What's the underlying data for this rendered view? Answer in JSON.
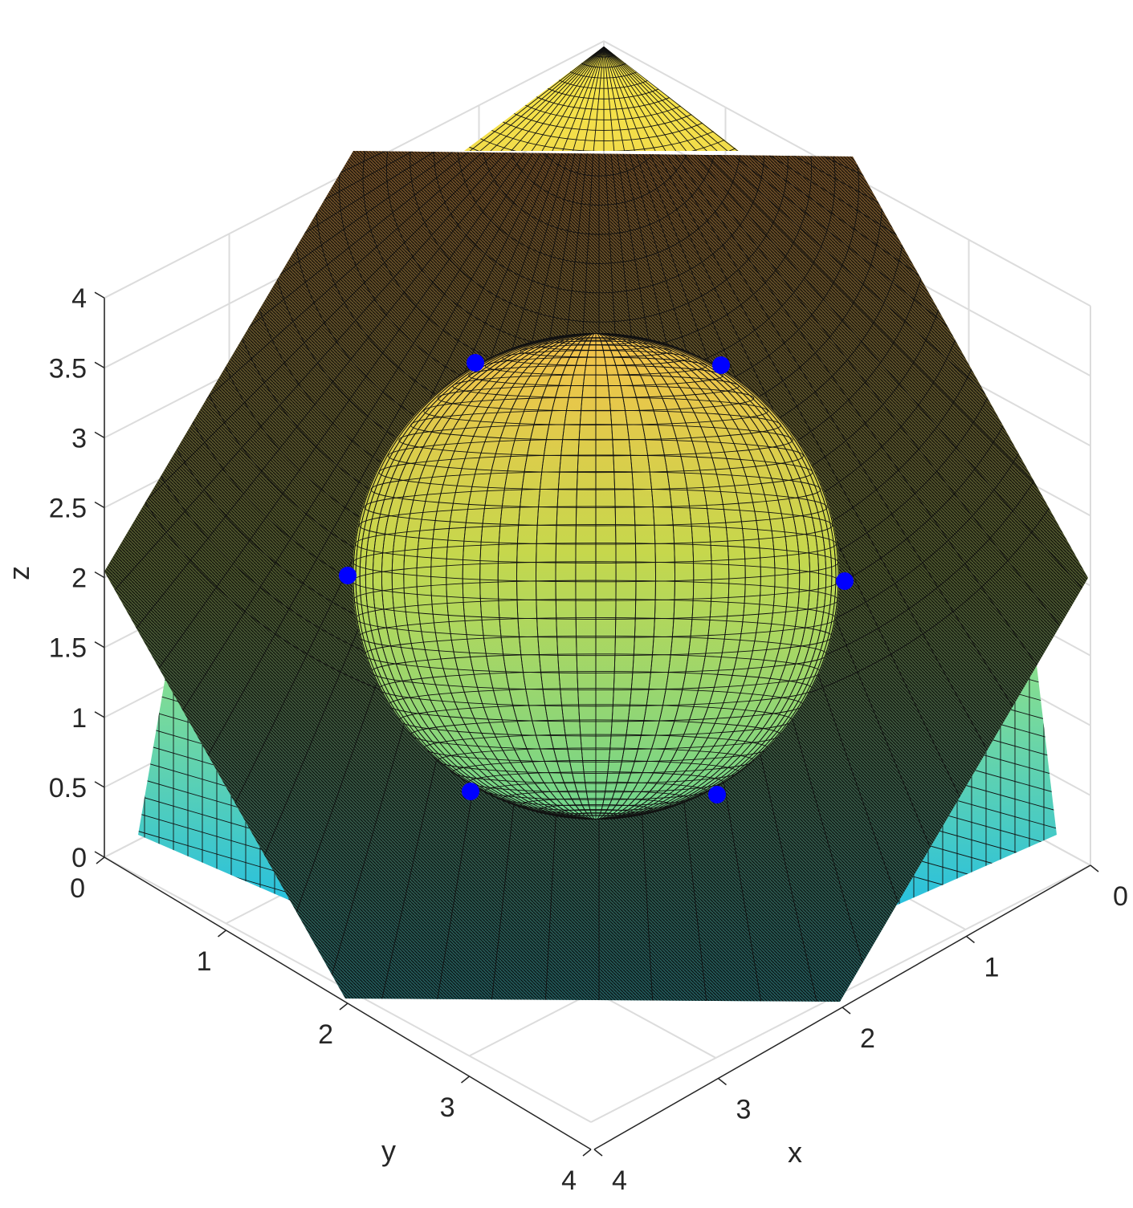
{
  "chart_data": {
    "type": "surface3d",
    "xlabel": "x",
    "ylabel": "y",
    "zlabel": "z",
    "xlim": [
      0,
      4
    ],
    "ylim": [
      0,
      4
    ],
    "zlim": [
      0,
      4
    ],
    "x_ticks": [
      "0",
      "1",
      "2",
      "3",
      "4"
    ],
    "y_ticks": [
      "0",
      "1",
      "2",
      "3",
      "4"
    ],
    "z_ticks": [
      "0",
      "0.5",
      "1",
      "1.5",
      "2",
      "2.5",
      "3",
      "3.5",
      "4"
    ],
    "grid": true,
    "colormap": [
      "#26c0e0",
      "#38c9b8",
      "#6fd68f",
      "#b9dd59",
      "#f2e54a",
      "#f5a642"
    ],
    "surfaces": [
      {
        "kind": "cone",
        "apex": [
          2,
          2,
          4
        ]
      },
      {
        "kind": "semi-transparent plane",
        "color": "#111111"
      },
      {
        "kind": "sphere",
        "center": [
          2,
          2,
          2
        ]
      }
    ],
    "markers": {
      "color": "#0000ff",
      "points": [
        {
          "z": 3.5
        },
        {
          "z": 3.5
        },
        {
          "z": 2.0
        },
        {
          "z": 2.0
        },
        {
          "z": 0.5
        },
        {
          "z": 0.5
        }
      ]
    }
  }
}
